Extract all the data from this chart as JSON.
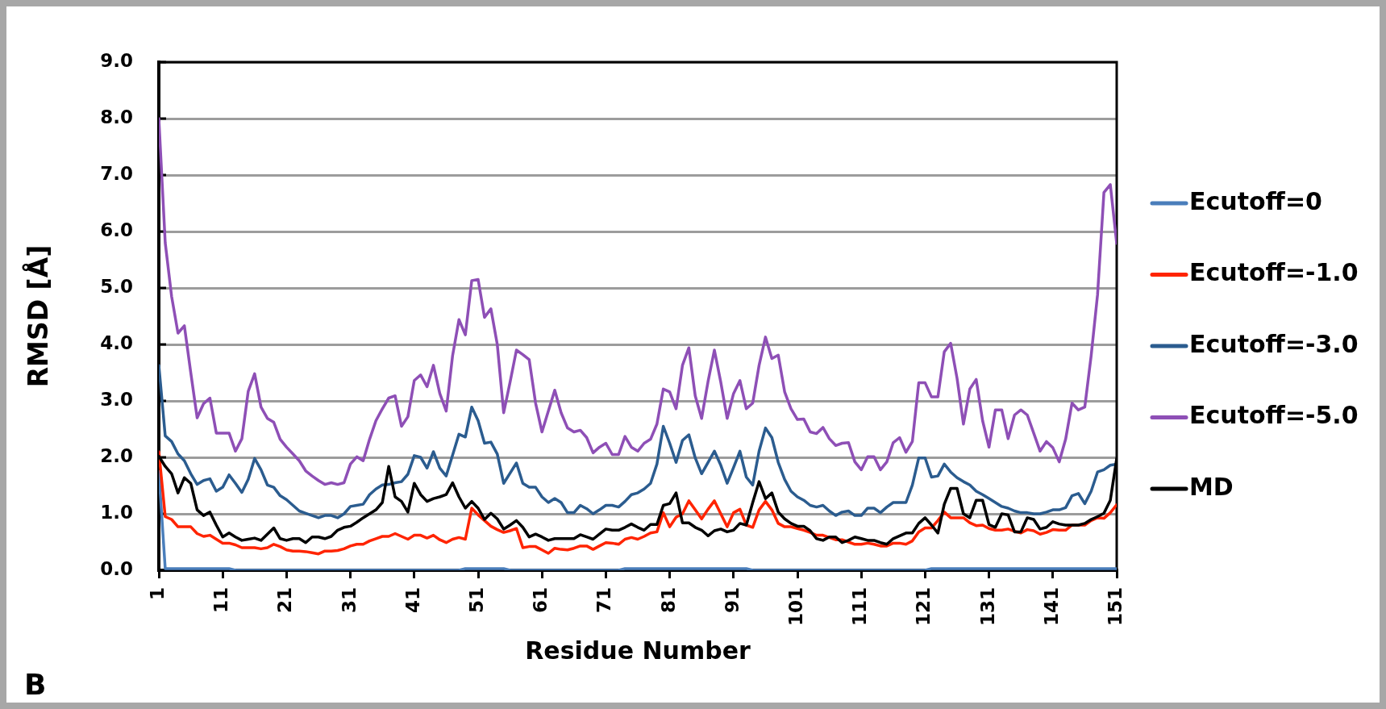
{
  "chart_data": {
    "type": "line",
    "xlabel": "Residue Number",
    "ylabel": "RMSD [Å]",
    "annotations": [
      "B"
    ],
    "x": [
      1,
      2,
      3,
      4,
      5,
      6,
      7,
      8,
      9,
      10,
      11,
      12,
      13,
      14,
      15,
      16,
      17,
      18,
      19,
      20,
      21,
      22,
      23,
      24,
      25,
      26,
      27,
      28,
      29,
      30,
      31,
      32,
      33,
      34,
      35,
      36,
      37,
      38,
      39,
      40,
      41,
      42,
      43,
      44,
      45,
      46,
      47,
      48,
      49,
      50,
      51,
      52,
      53,
      54,
      55,
      56,
      57,
      58,
      59,
      60,
      61,
      62,
      63,
      64,
      65,
      66,
      67,
      68,
      69,
      70,
      71,
      72,
      73,
      74,
      75,
      76,
      77,
      78,
      79,
      80,
      81,
      82,
      83,
      84,
      85,
      86,
      87,
      88,
      89,
      90,
      91,
      92,
      93,
      94,
      95,
      96,
      97,
      98,
      99,
      100,
      101,
      102,
      103,
      104,
      105,
      106,
      107,
      108,
      109,
      110,
      111,
      112,
      113,
      114,
      115,
      116,
      117,
      118,
      119,
      120,
      121,
      122,
      123,
      124,
      125,
      126,
      127,
      128,
      129,
      130,
      131,
      132,
      133,
      134,
      135,
      136,
      137,
      138,
      139,
      140,
      141,
      142,
      143,
      144,
      145,
      146,
      147,
      148,
      149,
      150,
      151
    ],
    "series": [
      {
        "name": "Ecutoff=0",
        "color": "#4a7ebb",
        "values": [
          1.75,
          0.03,
          0.03,
          0.03,
          0.03,
          0.03,
          0.03,
          0.03,
          0.03,
          0.03,
          0.03,
          0.03,
          0,
          0,
          0,
          0,
          0,
          0,
          0,
          0,
          0,
          0,
          0,
          0,
          0,
          0,
          0,
          0,
          0,
          0,
          0,
          0,
          0,
          0,
          0,
          0,
          0,
          0,
          0,
          0,
          0,
          0,
          0,
          0,
          0,
          0,
          0,
          0,
          0.03,
          0.03,
          0.03,
          0.03,
          0.03,
          0.03,
          0.03,
          0,
          0,
          0,
          0,
          0,
          0,
          0,
          0,
          0,
          0,
          0,
          0,
          0,
          0,
          0,
          0,
          0,
          0,
          0.03,
          0.03,
          0.03,
          0.03,
          0.03,
          0.03,
          0.03,
          0.03,
          0.03,
          0.03,
          0.03,
          0.03,
          0.03,
          0.03,
          0.03,
          0.03,
          0.03,
          0.03,
          0.03,
          0.03,
          0,
          0,
          0,
          0,
          0,
          0,
          0,
          0,
          0,
          0,
          0,
          0,
          0,
          0,
          0,
          0,
          0,
          0,
          0,
          0,
          0,
          0,
          0,
          0,
          0,
          0,
          0,
          0,
          0.03,
          0.03,
          0.03,
          0.03,
          0.03,
          0.03,
          0.03,
          0.03,
          0.03,
          0.03,
          0.03,
          0.03,
          0.03,
          0.03,
          0.03,
          0.03,
          0.03,
          0.03,
          0.03,
          0.03,
          0.03,
          0.03,
          0.03,
          0.03,
          0.03,
          0.03,
          0.03,
          0.03,
          0.03,
          0.03
        ]
      },
      {
        "name": "Ecutoff=-1.0",
        "color": "#ff2400",
        "values": [
          2.1,
          0.95,
          0.9,
          0.77,
          0.77,
          0.77,
          0.65,
          0.6,
          0.62,
          0.55,
          0.48,
          0.48,
          0.45,
          0.4,
          0.4,
          0.4,
          0.38,
          0.4,
          0.46,
          0.42,
          0.36,
          0.34,
          0.34,
          0.33,
          0.31,
          0.29,
          0.34,
          0.34,
          0.35,
          0.38,
          0.43,
          0.46,
          0.46,
          0.52,
          0.56,
          0.6,
          0.6,
          0.65,
          0.6,
          0.55,
          0.62,
          0.62,
          0.57,
          0.62,
          0.54,
          0.49,
          0.55,
          0.58,
          0.55,
          1.1,
          0.98,
          0.88,
          0.78,
          0.72,
          0.67,
          0.7,
          0.74,
          0.4,
          0.42,
          0.42,
          0.36,
          0.3,
          0.39,
          0.37,
          0.36,
          0.39,
          0.43,
          0.43,
          0.37,
          0.43,
          0.49,
          0.48,
          0.46,
          0.55,
          0.58,
          0.55,
          0.6,
          0.66,
          0.68,
          1.02,
          0.77,
          0.94,
          1.0,
          1.23,
          1.07,
          0.91,
          1.08,
          1.23,
          1.0,
          0.77,
          1.02,
          1.08,
          0.8,
          0.76,
          1.07,
          1.22,
          1.07,
          0.83,
          0.77,
          0.77,
          0.74,
          0.71,
          0.67,
          0.62,
          0.62,
          0.58,
          0.54,
          0.54,
          0.5,
          0.46,
          0.46,
          0.48,
          0.46,
          0.43,
          0.43,
          0.48,
          0.48,
          0.46,
          0.52,
          0.68,
          0.75,
          0.75,
          0.88,
          1.03,
          0.93,
          0.93,
          0.93,
          0.84,
          0.79,
          0.8,
          0.74,
          0.71,
          0.71,
          0.73,
          0.69,
          0.66,
          0.72,
          0.7,
          0.64,
          0.67,
          0.72,
          0.71,
          0.71,
          0.8,
          0.8,
          0.8,
          0.88,
          0.93,
          0.92,
          1.02,
          1.16
        ]
      },
      {
        "name": "Ecutoff=-3.0",
        "color": "#2b5c8f",
        "values": [
          3.63,
          2.38,
          2.28,
          2.06,
          1.94,
          1.71,
          1.52,
          1.59,
          1.62,
          1.4,
          1.47,
          1.69,
          1.54,
          1.38,
          1.61,
          1.98,
          1.78,
          1.51,
          1.47,
          1.32,
          1.25,
          1.15,
          1.05,
          1.01,
          0.97,
          0.93,
          0.97,
          0.97,
          0.93,
          1.0,
          1.13,
          1.15,
          1.17,
          1.34,
          1.44,
          1.51,
          1.52,
          1.55,
          1.57,
          1.7,
          2.03,
          2.0,
          1.81,
          2.1,
          1.81,
          1.67,
          2.04,
          2.41,
          2.36,
          2.89,
          2.65,
          2.25,
          2.27,
          2.06,
          1.54,
          1.72,
          1.9,
          1.54,
          1.47,
          1.47,
          1.3,
          1.2,
          1.27,
          1.2,
          1.02,
          1.02,
          1.15,
          1.09,
          1.0,
          1.07,
          1.15,
          1.15,
          1.12,
          1.22,
          1.34,
          1.37,
          1.44,
          1.54,
          1.88,
          2.55,
          2.25,
          1.91,
          2.3,
          2.4,
          1.99,
          1.71,
          1.91,
          2.11,
          1.86,
          1.54,
          1.82,
          2.11,
          1.65,
          1.51,
          2.11,
          2.52,
          2.35,
          1.91,
          1.61,
          1.4,
          1.3,
          1.24,
          1.15,
          1.12,
          1.15,
          1.05,
          0.97,
          1.03,
          1.05,
          0.97,
          0.97,
          1.1,
          1.1,
          1.02,
          1.12,
          1.2,
          1.2,
          1.2,
          1.51,
          1.99,
          1.99,
          1.65,
          1.67,
          1.88,
          1.74,
          1.64,
          1.57,
          1.51,
          1.4,
          1.34,
          1.27,
          1.2,
          1.13,
          1.1,
          1.05,
          1.02,
          1.02,
          1.0,
          1.0,
          1.03,
          1.07,
          1.07,
          1.11,
          1.32,
          1.36,
          1.18,
          1.4,
          1.74,
          1.78,
          1.86,
          1.88
        ]
      },
      {
        "name": "Ecutoff=-5.0",
        "color": "#8e4fb6",
        "values": [
          8.0,
          5.8,
          4.85,
          4.2,
          4.33,
          3.5,
          2.7,
          2.95,
          3.05,
          2.43,
          2.43,
          2.43,
          2.11,
          2.33,
          3.17,
          3.48,
          2.89,
          2.69,
          2.62,
          2.32,
          2.18,
          2.06,
          1.94,
          1.76,
          1.67,
          1.59,
          1.52,
          1.55,
          1.52,
          1.55,
          1.88,
          2.01,
          1.94,
          2.32,
          2.65,
          2.86,
          3.05,
          3.09,
          2.55,
          2.72,
          3.36,
          3.46,
          3.25,
          3.63,
          3.13,
          2.82,
          3.8,
          4.44,
          4.17,
          5.13,
          5.15,
          4.48,
          4.63,
          4.0,
          2.79,
          3.33,
          3.9,
          3.82,
          3.73,
          2.96,
          2.45,
          2.82,
          3.19,
          2.79,
          2.52,
          2.45,
          2.48,
          2.35,
          2.08,
          2.18,
          2.25,
          2.05,
          2.05,
          2.37,
          2.18,
          2.11,
          2.25,
          2.32,
          2.59,
          3.21,
          3.16,
          2.86,
          3.63,
          3.94,
          3.09,
          2.69,
          3.34,
          3.9,
          3.33,
          2.69,
          3.13,
          3.36,
          2.86,
          2.96,
          3.63,
          4.13,
          3.75,
          3.81,
          3.16,
          2.86,
          2.67,
          2.68,
          2.45,
          2.42,
          2.53,
          2.33,
          2.21,
          2.25,
          2.26,
          1.92,
          1.78,
          2.01,
          2.01,
          1.78,
          1.92,
          2.26,
          2.35,
          2.09,
          2.28,
          3.32,
          3.32,
          3.07,
          3.07,
          3.87,
          4.02,
          3.4,
          2.59,
          3.21,
          3.38,
          2.65,
          2.18,
          2.84,
          2.84,
          2.33,
          2.75,
          2.84,
          2.75,
          2.43,
          2.11,
          2.28,
          2.17,
          1.92,
          2.32,
          2.96,
          2.84,
          2.89,
          3.8,
          4.88,
          6.69,
          6.83,
          5.79
        ]
      },
      {
        "name": "MD",
        "color": "#000000",
        "values": [
          2.02,
          1.84,
          1.71,
          1.37,
          1.64,
          1.54,
          1.07,
          0.97,
          1.03,
          0.8,
          0.59,
          0.66,
          0.59,
          0.53,
          0.55,
          0.57,
          0.53,
          0.64,
          0.75,
          0.56,
          0.53,
          0.56,
          0.56,
          0.49,
          0.59,
          0.59,
          0.56,
          0.6,
          0.71,
          0.76,
          0.78,
          0.85,
          0.93,
          1.0,
          1.07,
          1.2,
          1.84,
          1.3,
          1.22,
          1.03,
          1.54,
          1.34,
          1.22,
          1.27,
          1.3,
          1.34,
          1.55,
          1.3,
          1.1,
          1.22,
          1.1,
          0.9,
          1.01,
          0.91,
          0.73,
          0.8,
          0.88,
          0.76,
          0.59,
          0.64,
          0.59,
          0.53,
          0.56,
          0.56,
          0.56,
          0.56,
          0.63,
          0.59,
          0.55,
          0.64,
          0.73,
          0.71,
          0.71,
          0.76,
          0.82,
          0.76,
          0.71,
          0.81,
          0.81,
          1.15,
          1.18,
          1.37,
          0.84,
          0.84,
          0.76,
          0.71,
          0.61,
          0.7,
          0.73,
          0.68,
          0.71,
          0.83,
          0.8,
          1.2,
          1.57,
          1.27,
          1.37,
          1.03,
          0.91,
          0.83,
          0.78,
          0.78,
          0.7,
          0.56,
          0.53,
          0.59,
          0.59,
          0.49,
          0.53,
          0.59,
          0.56,
          0.53,
          0.53,
          0.49,
          0.46,
          0.56,
          0.61,
          0.66,
          0.66,
          0.83,
          0.93,
          0.8,
          0.66,
          1.17,
          1.45,
          1.45,
          1.0,
          0.93,
          1.24,
          1.24,
          0.81,
          0.76,
          1.0,
          0.98,
          0.68,
          0.68,
          0.93,
          0.9,
          0.73,
          0.76,
          0.86,
          0.82,
          0.8,
          0.8,
          0.8,
          0.83,
          0.9,
          0.95,
          1.01,
          1.24,
          1.98
        ]
      }
    ],
    "xlim": [
      1,
      151
    ],
    "xticks": [
      1,
      11,
      21,
      31,
      41,
      51,
      61,
      71,
      81,
      91,
      101,
      111,
      121,
      131,
      141,
      151
    ],
    "ylim": [
      0,
      9
    ],
    "yticks": [
      {
        "value": 0,
        "label": "0.0"
      },
      {
        "value": 1,
        "label": "1.0"
      },
      {
        "value": 2,
        "label": "2.0"
      },
      {
        "value": 3,
        "label": "3.0"
      },
      {
        "value": 4,
        "label": "4.0"
      },
      {
        "value": 5,
        "label": "5.0"
      },
      {
        "value": 6,
        "label": "6.0"
      },
      {
        "value": 7,
        "label": "7.0"
      },
      {
        "value": 8,
        "label": "8.0"
      },
      {
        "value": 9,
        "label": "9.0"
      }
    ],
    "grid": "y",
    "legend": "right"
  }
}
